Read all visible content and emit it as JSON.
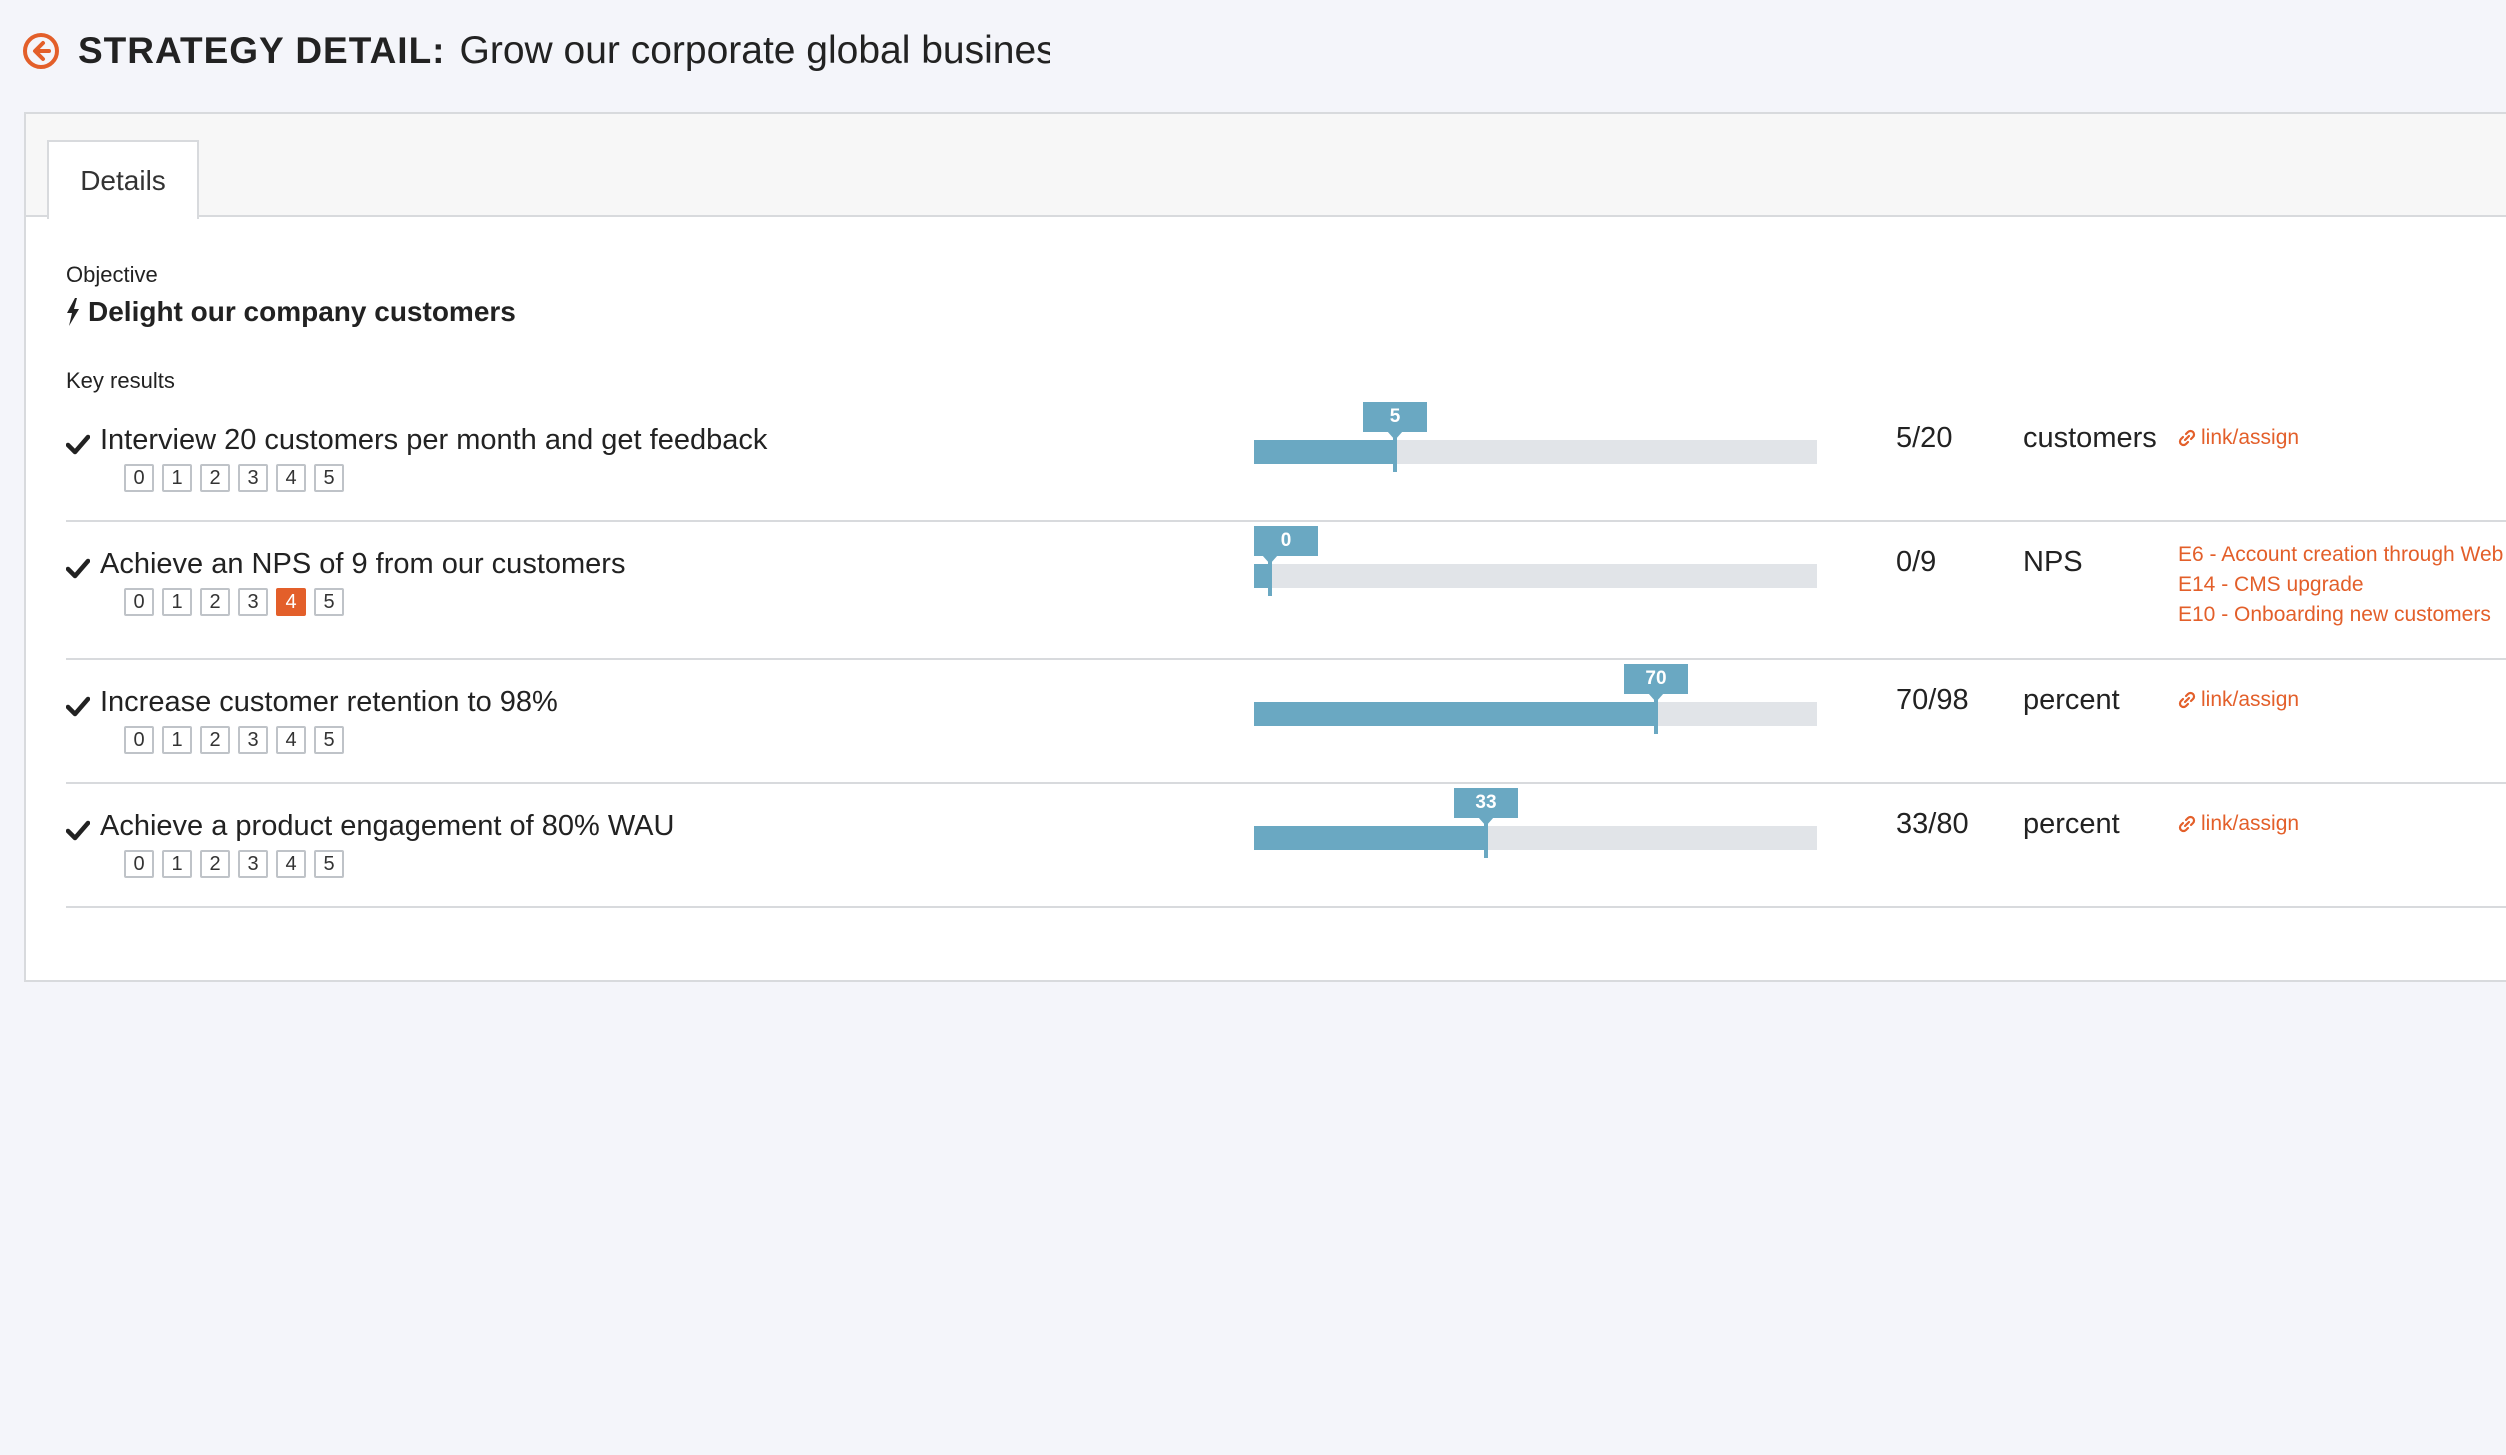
{
  "header": {
    "title_label": "STRATEGY DETAIL:",
    "title_value": "Grow our corporate global business"
  },
  "tabs": [
    {
      "label": "Details"
    }
  ],
  "objective": {
    "label": "Objective",
    "title": "Delight our company customers",
    "icon": "bolt-icon"
  },
  "key_results": {
    "label": "Key results",
    "score_options": [
      "0",
      "1",
      "2",
      "3",
      "4",
      "5"
    ],
    "items": [
      {
        "title": "Interview 20 customers per month and get feedback",
        "current": 5,
        "target": 20,
        "marker": "5",
        "ratio": "5/20",
        "unit": "customers",
        "selected_score": null,
        "link_label": "link/assign",
        "epics": []
      },
      {
        "title": "Achieve an NPS of 9 from our customers",
        "current": 0,
        "target": 9,
        "marker": "0",
        "ratio": "0/9",
        "unit": "NPS",
        "selected_score": "4",
        "link_label": null,
        "epics": [
          "E6 - Account creation through Web",
          "E14 - CMS upgrade",
          "E10 - Onboarding new customers"
        ]
      },
      {
        "title": "Increase customer retention to 98%",
        "current": 70,
        "target": 98,
        "marker": "70",
        "ratio": "70/98",
        "unit": "percent",
        "selected_score": null,
        "link_label": "link/assign",
        "epics": []
      },
      {
        "title": "Achieve a product engagement of 80% WAU",
        "current": 33,
        "target": 80,
        "marker": "33",
        "ratio": "33/80",
        "unit": "percent",
        "selected_score": null,
        "link_label": "link/assign",
        "epics": []
      }
    ]
  },
  "colors": {
    "accent": "#e35f2a",
    "progress": "#6aa8c2",
    "track": "#e1e4e8",
    "background": "#f4f5fa"
  }
}
